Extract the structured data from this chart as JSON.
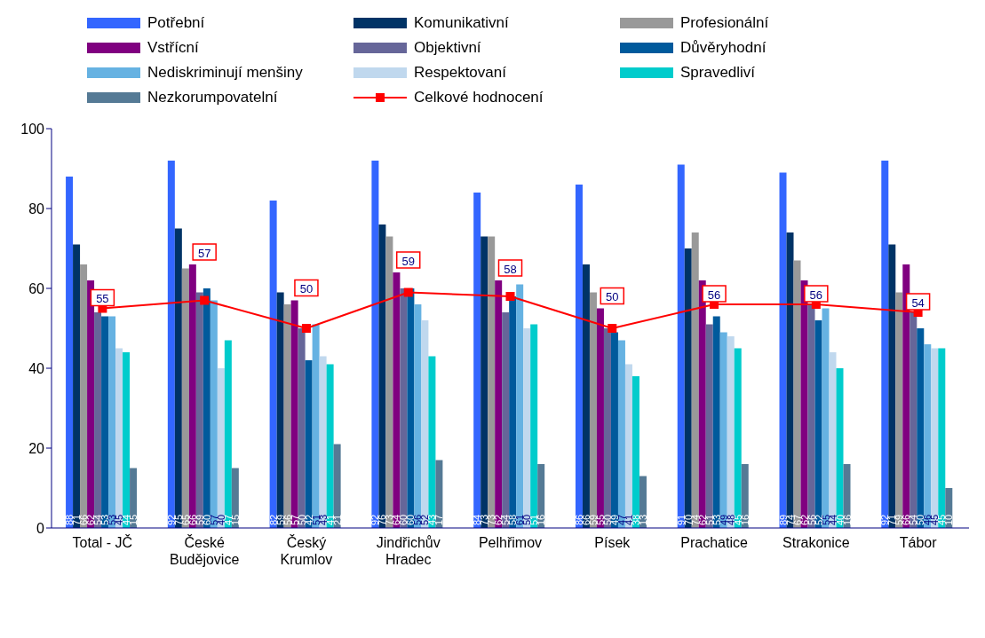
{
  "chart_data": {
    "type": "bar",
    "categories": [
      "Total - JČ",
      "České Budějovice",
      "Český Krumlov",
      "Jindřichův Hradec",
      "Pelhřimov",
      "Písek",
      "Prachatice",
      "Strakonice",
      "Tábor"
    ],
    "series": [
      {
        "name": "Potřební",
        "color": "#3366ff",
        "values": [
          88,
          92,
          82,
          92,
          84,
          86,
          91,
          89,
          92
        ]
      },
      {
        "name": "Komunikativní",
        "color": "#003366",
        "values": [
          71,
          75,
          59,
          76,
          73,
          66,
          70,
          74,
          71
        ]
      },
      {
        "name": "Profesionální",
        "color": "#999999",
        "values": [
          66,
          65,
          56,
          73,
          73,
          59,
          74,
          67,
          59
        ]
      },
      {
        "name": "Vstřícní",
        "color": "#800080",
        "values": [
          62,
          66,
          57,
          64,
          62,
          55,
          62,
          62,
          66
        ]
      },
      {
        "name": "Objektivní",
        "color": "#666699",
        "values": [
          54,
          59,
          50,
          60,
          54,
          50,
          51,
          56,
          54
        ]
      },
      {
        "name": "Důvěryhodní",
        "color": "#005a9c",
        "values": [
          53,
          60,
          42,
          60,
          58,
          49,
          53,
          52,
          50
        ]
      },
      {
        "name": "Nediskriminují menšiny",
        "color": "#66b2e2",
        "values": [
          53,
          57,
          51,
          56,
          61,
          47,
          49,
          55,
          46
        ]
      },
      {
        "name": "Respektovaní",
        "color": "#c0d8ee",
        "values": [
          45,
          40,
          43,
          52,
          50,
          41,
          48,
          44,
          45
        ]
      },
      {
        "name": "Spravedliví",
        "color": "#00cccc",
        "values": [
          44,
          47,
          41,
          43,
          51,
          38,
          45,
          40,
          45
        ]
      },
      {
        "name": "Nezkorumpovatelní",
        "color": "#557a95",
        "values": [
          15,
          15,
          21,
          17,
          16,
          13,
          16,
          16,
          10
        ]
      },
      {
        "name": "Celkové hodnocení",
        "type": "line",
        "color": "#ff0000",
        "values": [
          55,
          57,
          50,
          59,
          58,
          50,
          56,
          56,
          54
        ]
      }
    ],
    "marker": "square",
    "ylim": [
      0,
      100
    ],
    "yticks": [
      0,
      20,
      40,
      60,
      80,
      100
    ],
    "grid": false,
    "legend": "top",
    "data_labels": true
  }
}
